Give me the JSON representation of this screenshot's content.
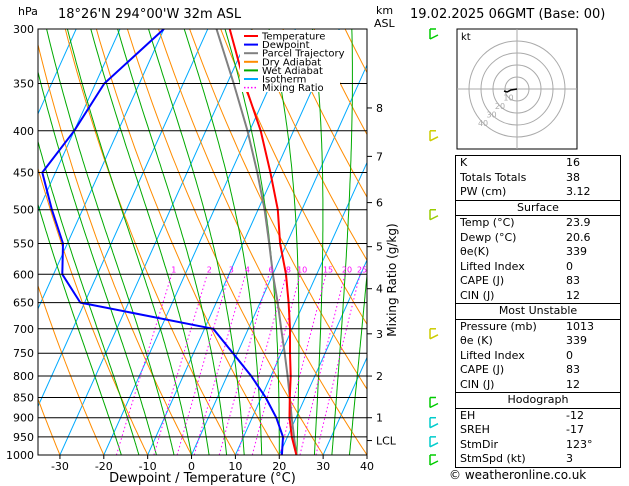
{
  "header": {
    "hpa_label": "hPa",
    "location": "18°26'N  294°00'W  32m  ASL",
    "km_label": "km",
    "asl_label": "ASL",
    "datetime": "19.02.2025  06GMT  (Base: 00)"
  },
  "chart_data": {
    "type": "skew-t",
    "pressure_levels": [
      300,
      350,
      400,
      450,
      500,
      550,
      600,
      650,
      700,
      750,
      800,
      850,
      900,
      950,
      1000
    ],
    "temperature_ticks": [
      -30,
      -20,
      -10,
      0,
      10,
      20,
      30,
      40
    ],
    "xlabel": "Dewpoint / Temperature (°C)",
    "ylabel_right": "Mixing Ratio (g/kg)",
    "km_ticks": [
      {
        "label": "8",
        "p": 375
      },
      {
        "label": "7",
        "p": 430
      },
      {
        "label": "6",
        "p": 490
      },
      {
        "label": "5",
        "p": 555
      },
      {
        "label": "4",
        "p": 625
      },
      {
        "label": "3",
        "p": 710
      },
      {
        "label": "2",
        "p": 800
      },
      {
        "label": "1",
        "p": 900
      },
      {
        "label": "LCL",
        "p": 960
      }
    ],
    "mixing_ratio_labels": [
      "1",
      "2",
      "3",
      "4",
      "6",
      "8",
      "10",
      "15",
      "20",
      "25"
    ],
    "mixing_ratio_values": [
      1,
      2,
      3,
      4,
      6,
      8,
      10,
      15,
      20,
      25
    ],
    "legend": [
      {
        "name": "Temperature",
        "color": "#ff0000",
        "style": "solid"
      },
      {
        "name": "Dewpoint",
        "color": "#0000ff",
        "style": "solid"
      },
      {
        "name": "Parcel Trajectory",
        "color": "#808080",
        "style": "solid"
      },
      {
        "name": "Dry Adiabat",
        "color": "#ff8c00",
        "style": "solid"
      },
      {
        "name": "Wet Adiabat",
        "color": "#00aa00",
        "style": "solid"
      },
      {
        "name": "Isotherm",
        "color": "#00aaff",
        "style": "solid"
      },
      {
        "name": "Mixing Ratio",
        "color": "#ff00ff",
        "style": "dotted"
      }
    ],
    "series": [
      {
        "name": "Temperature",
        "color": "#ff0000",
        "points": [
          [
            1000,
            23.9
          ],
          [
            950,
            21.0
          ],
          [
            900,
            18.5
          ],
          [
            850,
            16.5
          ],
          [
            800,
            14.5
          ],
          [
            750,
            12.0
          ],
          [
            700,
            9.5
          ],
          [
            650,
            6.5
          ],
          [
            600,
            3.0
          ],
          [
            550,
            -1.5
          ],
          [
            500,
            -5.5
          ],
          [
            450,
            -11.0
          ],
          [
            400,
            -17.5
          ],
          [
            350,
            -26.0
          ],
          [
            300,
            -35.0
          ]
        ]
      },
      {
        "name": "Dewpoint",
        "color": "#0000ff",
        "points": [
          [
            1000,
            20.6
          ],
          [
            950,
            19.0
          ],
          [
            900,
            15.5
          ],
          [
            850,
            11.0
          ],
          [
            800,
            5.5
          ],
          [
            750,
            -1.0
          ],
          [
            700,
            -8.0
          ],
          [
            650,
            -41.0
          ],
          [
            600,
            -48.0
          ],
          [
            550,
            -51.0
          ],
          [
            500,
            -57.0
          ],
          [
            450,
            -63.0
          ],
          [
            400,
            -60.0
          ],
          [
            350,
            -58.0
          ],
          [
            300,
            -50.0
          ]
        ]
      },
      {
        "name": "Parcel Trajectory",
        "color": "#808080",
        "points": [
          [
            1000,
            23.9
          ],
          [
            960,
            22.0
          ],
          [
            900,
            19.0
          ],
          [
            850,
            16.5
          ],
          [
            800,
            13.8
          ],
          [
            750,
            10.8
          ],
          [
            700,
            7.5
          ],
          [
            650,
            4.0
          ],
          [
            600,
            0.0
          ],
          [
            550,
            -4.0
          ],
          [
            500,
            -8.5
          ],
          [
            450,
            -14.0
          ],
          [
            400,
            -20.5
          ],
          [
            350,
            -28.5
          ],
          [
            300,
            -38.0
          ]
        ]
      }
    ],
    "wind_barbs": [
      {
        "p": 1000,
        "color": "#00cc00"
      },
      {
        "p": 950,
        "color": "#00cccc"
      },
      {
        "p": 900,
        "color": "#00cccc"
      },
      {
        "p": 850,
        "color": "#00cc00"
      },
      {
        "p": 700,
        "color": "#cccc00"
      },
      {
        "p": 500,
        "color": "#99cc00"
      },
      {
        "p": 400,
        "color": "#cccc00"
      },
      {
        "p": 300,
        "color": "#00cc00"
      }
    ]
  },
  "hodograph": {
    "label": "kt",
    "ring_labels": [
      "10",
      "20",
      "30",
      "40"
    ]
  },
  "indices": [
    {
      "label": "K",
      "value": "16"
    },
    {
      "label": "Totals Totals",
      "value": "38"
    },
    {
      "label": "PW (cm)",
      "value": "3.12"
    }
  ],
  "surface": {
    "title": "Surface",
    "rows": [
      {
        "label": "Temp (°C)",
        "value": "23.9"
      },
      {
        "label": "Dewp (°C)",
        "value": "20.6"
      },
      {
        "label": "θe(K)",
        "value": "339"
      },
      {
        "label": "Lifted Index",
        "value": "0"
      },
      {
        "label": "CAPE (J)",
        "value": "83"
      },
      {
        "label": "CIN (J)",
        "value": "12"
      }
    ]
  },
  "most_unstable": {
    "title": "Most Unstable",
    "rows": [
      {
        "label": "Pressure (mb)",
        "value": "1013"
      },
      {
        "label": "θe (K)",
        "value": "339"
      },
      {
        "label": "Lifted Index",
        "value": "0"
      },
      {
        "label": "CAPE (J)",
        "value": "83"
      },
      {
        "label": "CIN (J)",
        "value": "12"
      }
    ]
  },
  "hodograph_table": {
    "title": "Hodograph",
    "rows": [
      {
        "label": "EH",
        "value": "-12"
      },
      {
        "label": "SREH",
        "value": "-17"
      },
      {
        "label": "StmDir",
        "value": "123°"
      },
      {
        "label": "StmSpd (kt)",
        "value": "3"
      }
    ]
  },
  "footer": {
    "copyright": "© weatheronline.co.uk"
  }
}
